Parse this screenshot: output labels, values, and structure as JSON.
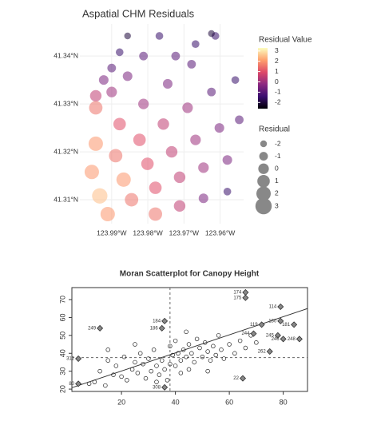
{
  "chart_data": [
    {
      "type": "scatter",
      "title": "Aspatial CHM Residuals",
      "x": [
        -123.9944,
        -123.9922,
        -123.99,
        -123.9878,
        -123.9856,
        -123.9944,
        -123.99,
        -123.9856,
        -123.9812,
        -123.9768,
        -123.9944,
        -123.9878,
        -123.9812,
        -123.9745,
        -123.9679,
        -123.9613,
        -123.9955,
        -123.9889,
        -123.9823,
        -123.9757,
        -123.969,
        -123.9624,
        -123.9558,
        -123.9933,
        -123.9867,
        -123.9801,
        -123.9734,
        -123.9668,
        -123.9602,
        -123.9547,
        -123.9911,
        -123.9845,
        -123.9779,
        -123.9712,
        -123.9646,
        -123.958,
        -123.9779,
        -123.9712,
        -123.9646,
        -123.958,
        -123.9723,
        -123.9668,
        -123.9624
      ],
      "values": [
        41.3317,
        41.335,
        41.3375,
        41.3408,
        41.3442,
        41.3292,
        41.3325,
        41.3358,
        41.34,
        41.3442,
        41.3217,
        41.3258,
        41.33,
        41.3342,
        41.3383,
        41.3442,
        41.3158,
        41.3192,
        41.3225,
        41.3258,
        41.3292,
        41.3325,
        41.335,
        41.3108,
        41.3142,
        41.3175,
        41.32,
        41.3225,
        41.325,
        41.3267,
        41.307,
        41.31,
        41.3125,
        41.3147,
        41.3167,
        41.3183,
        41.307,
        41.3087,
        41.3103,
        41.3117,
        41.34,
        41.3425,
        41.3447
      ],
      "residuals": [
        0.5,
        -0.5,
        -1,
        -1.5,
        -2,
        1.5,
        0,
        -0.5,
        -1,
        -1.5,
        2,
        1,
        0,
        -0.5,
        -1,
        -1.5,
        2,
        1.5,
        1,
        0.5,
        0,
        -1,
        -1.5,
        2.5,
        2,
        1,
        0.5,
        0,
        -0.5,
        -1,
        2,
        1.5,
        1,
        0.5,
        0,
        -0.5,
        1.5,
        0.5,
        -0.5,
        -1.5,
        -1,
        -1.5,
        -2
      ],
      "xlim": [
        -123.9988,
        -123.9535
      ],
      "ylim": [
        41.305,
        41.3467
      ],
      "xticks": [
        {
          "value": -123.99,
          "label": "123.99°W"
        },
        {
          "value": -123.98,
          "label": "123.98°W"
        },
        {
          "value": -123.97,
          "label": "123.97°W"
        },
        {
          "value": -123.96,
          "label": "123.96°W"
        }
      ],
      "yticks": [
        {
          "value": 41.31,
          "label": "41.31°N"
        },
        {
          "value": 41.32,
          "label": "41.32°N"
        },
        {
          "value": 41.33,
          "label": "41.33°N"
        },
        {
          "value": 41.34,
          "label": "41.34°N"
        }
      ],
      "grid": true,
      "colormap": [
        "#000004",
        "#3b0f70",
        "#8c2981",
        "#de4968",
        "#fe9f6d",
        "#fcfdbf"
      ],
      "colorbar": {
        "title": "Residual Value",
        "lim": [
          -2.6,
          3.3
        ],
        "ticks": [
          3,
          2,
          1,
          0,
          -1,
          -2
        ]
      },
      "size_legend": {
        "title": "Residual",
        "values": [
          -2,
          -1,
          0,
          1,
          2,
          3
        ],
        "color": "#888888"
      }
    },
    {
      "type": "scatter",
      "title": "Moran Scatterplot for Canopy Height",
      "x": [
        10,
        12,
        14,
        15,
        17,
        18,
        20,
        21,
        22,
        24,
        25,
        26,
        27,
        28,
        29,
        30,
        31,
        32,
        33,
        34,
        35,
        36,
        37,
        38,
        39,
        40,
        40,
        41,
        42,
        42,
        43,
        44,
        45,
        45,
        46,
        47,
        48,
        49,
        50,
        51,
        52,
        53,
        54,
        55,
        56,
        57,
        58,
        60,
        62,
        64,
        66,
        68,
        70,
        8,
        15,
        25,
        33,
        44,
        52,
        38
      ],
      "values": [
        24,
        30,
        22,
        36,
        28,
        33,
        27,
        38,
        25,
        31,
        35,
        29,
        40,
        34,
        26,
        37,
        30,
        42,
        33,
        28,
        36,
        31,
        25,
        44,
        39,
        47,
        33,
        40,
        36,
        29,
        42,
        38,
        45,
        31,
        40,
        35,
        48,
        43,
        38,
        46,
        41,
        36,
        44,
        39,
        50,
        42,
        37,
        45,
        40,
        47,
        43,
        50,
        46,
        23,
        42,
        45,
        24,
        52,
        30,
        34
      ],
      "influential": {
        "labels": [
          "174",
          "175",
          "114",
          "181",
          "180",
          "119",
          "244",
          "245",
          "246",
          "248",
          "262",
          "22",
          "249",
          "184",
          "186",
          "312",
          "308",
          "80"
        ],
        "x": [
          66,
          66,
          79,
          84,
          79,
          72,
          69,
          78,
          80,
          86,
          75,
          65,
          12,
          36,
          35,
          4,
          36,
          4
        ],
        "values": [
          74,
          71,
          66,
          56,
          58,
          56,
          51,
          50,
          48,
          48,
          41,
          26,
          54,
          58,
          54,
          37,
          21,
          23
        ]
      },
      "fit": {
        "x": [
          1.6,
          89
        ],
        "values": [
          20.8,
          65
        ]
      },
      "vline": 38,
      "hline": 37.6,
      "xlim": [
        1.6,
        89
      ],
      "ylim": [
        18.7,
        76.7
      ],
      "xticks": [
        20,
        40,
        60,
        80
      ],
      "yticks": [
        20,
        30,
        40,
        50,
        60,
        70
      ]
    }
  ]
}
